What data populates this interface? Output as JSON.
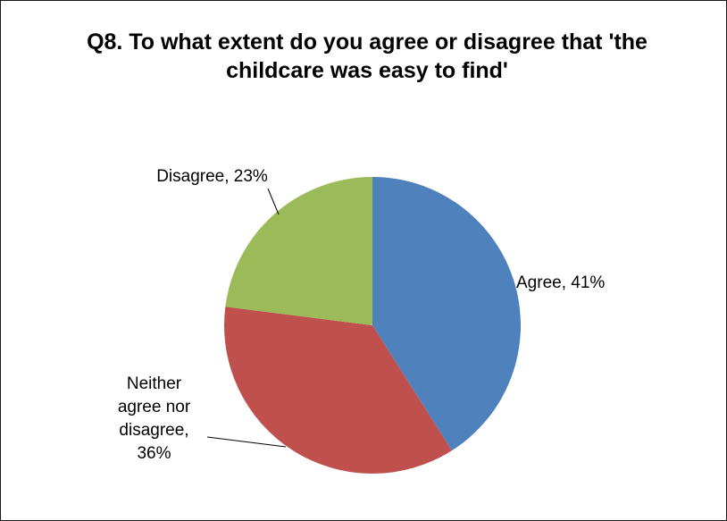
{
  "chart_data": {
    "type": "pie",
    "title": "Q8. To what extent do you agree or disagree that 'the childcare was easy to find'",
    "categories": [
      "Agree",
      "Neither agree nor disagree",
      "Disagree"
    ],
    "values": [
      41,
      36,
      23
    ],
    "colors": [
      "#4F81BD",
      "#C0504D",
      "#9BBB59"
    ],
    "start_angle_deg": 0,
    "direction": "clockwise",
    "legend": "none",
    "data_labels": [
      "Agree, 41%",
      "Neither agree nor disagree, 36%",
      "Disagree, 23%"
    ]
  }
}
